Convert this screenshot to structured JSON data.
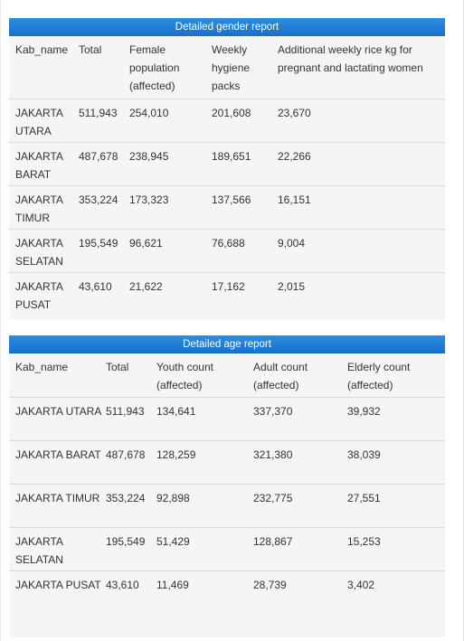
{
  "gender_report": {
    "title": "Detailed gender report",
    "headers": {
      "kab_name": "Kab_name",
      "total": "Total",
      "female": "Female population (affected)",
      "hygiene": "Weekly hygiene packs",
      "rice": "Additional weekly rice kg for pregnant and lactating women"
    },
    "rows": [
      {
        "kab_name": "JAKARTA UTARA",
        "total": "511,943",
        "female": "254,010",
        "hygiene": "201,608",
        "rice": "23,670"
      },
      {
        "kab_name": "JAKARTA BARAT",
        "total": "487,678",
        "female": "238,945",
        "hygiene": "189,651",
        "rice": "22,266"
      },
      {
        "kab_name": "JAKARTA TIMUR",
        "total": "353,224",
        "female": "173,323",
        "hygiene": "137,566",
        "rice": "16,151"
      },
      {
        "kab_name": "JAKARTA SELATAN",
        "total": "195,549",
        "female": "96,621",
        "hygiene": "76,688",
        "rice": "9,004"
      },
      {
        "kab_name": "JAKARTA PUSAT",
        "total": "43,610",
        "female": "21,622",
        "hygiene": "17,162",
        "rice": "2,015"
      }
    ]
  },
  "age_report": {
    "title": "Detailed age report",
    "headers": {
      "kab_name": "Kab_name",
      "total": "Total",
      "youth": "Youth count (affected)",
      "adult": "Adult count (affected)",
      "elderly": "Elderly count (affected)"
    },
    "rows": [
      {
        "kab_name": "JAKARTA UTARA",
        "total": "511,943",
        "youth": "134,641",
        "adult": "337,370",
        "elderly": "39,932"
      },
      {
        "kab_name": "JAKARTA BARAT",
        "total": "487,678",
        "youth": "128,259",
        "adult": "321,380",
        "elderly": "38,039"
      },
      {
        "kab_name": "JAKARTA TIMUR",
        "total": "353,224",
        "youth": "92,898",
        "adult": "232,775",
        "elderly": "27,551"
      },
      {
        "kab_name": "JAKARTA SELATAN",
        "total": "195,549",
        "youth": "51,429",
        "adult": "128,867",
        "elderly": "15,253"
      },
      {
        "kab_name": "JAKARTA PUSAT",
        "total": "43,610",
        "youth": "11,469",
        "adult": "28,739",
        "elderly": "3,402"
      }
    ]
  }
}
